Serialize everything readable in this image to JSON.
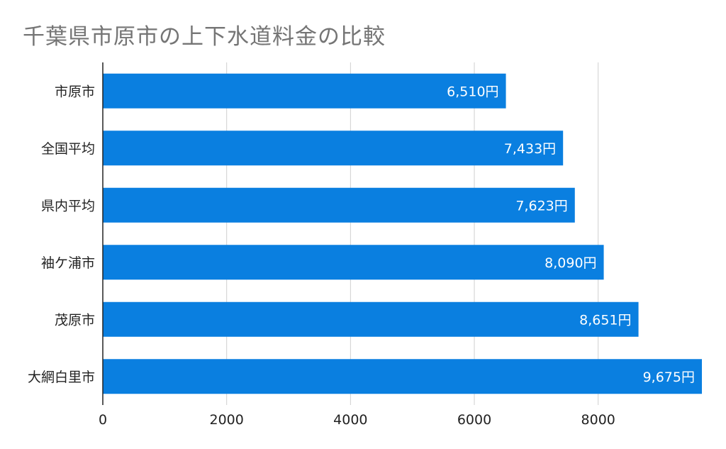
{
  "chart_data": {
    "type": "bar",
    "orientation": "horizontal",
    "title": "千葉県市原市の上下水道料金の比較",
    "categories": [
      "市原市",
      "全国平均",
      "県内平均",
      "袖ケ浦市",
      "茂原市",
      "大網白里市"
    ],
    "values": [
      6510,
      7433,
      7623,
      8090,
      8651,
      9675
    ],
    "data_labels": [
      "6,510円",
      "7,433円",
      "7,623円",
      "8,090円",
      "8,651円",
      "9,675円"
    ],
    "xlabel": "",
    "ylabel": "",
    "xlim": [
      0,
      9675
    ],
    "x_ticks": [
      0,
      2000,
      4000,
      6000,
      8000
    ],
    "x_tick_labels": [
      "0",
      "2000",
      "4000",
      "6000",
      "8000"
    ],
    "grid": true,
    "legend": "none",
    "bar_color": "#0a7fe0",
    "grid_color": "#cfcfcf",
    "axis_color": "#222222"
  }
}
